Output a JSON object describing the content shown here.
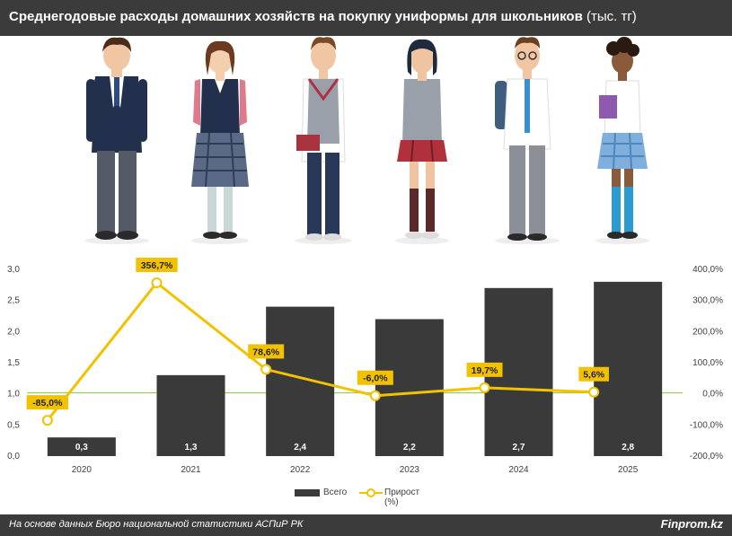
{
  "header": {
    "title": "Среднегодовые расходы домашних хозяйств на покупку униформы для школьников",
    "unit": "(тыс. тг)"
  },
  "footer": {
    "source": "На основе данных Бюро национальной статистики АСПиР РК",
    "brand": "Finprom.kz"
  },
  "colors": {
    "header_bg": "#3b3b3b",
    "bar": "#3a3a3a",
    "line": "#f2c200",
    "label_bg": "#f2c200",
    "baseline": "#8cc63f"
  },
  "chart_data": {
    "type": "bar",
    "categories": [
      "2020",
      "2021",
      "2022",
      "2023",
      "2024",
      "2025"
    ],
    "series": [
      {
        "name": "Всего",
        "type": "bar",
        "axis": "left",
        "values": [
          0.3,
          1.3,
          2.4,
          2.2,
          2.7,
          2.8
        ],
        "labels": [
          "0,3",
          "1,3",
          "2,4",
          "2,2",
          "2,7",
          "2,8"
        ]
      },
      {
        "name": "Прирост (%)",
        "type": "line",
        "axis": "right",
        "values": [
          -85.0,
          356.7,
          78.6,
          -6.0,
          19.7,
          5.6
        ],
        "labels": [
          "-85,0%",
          "356,7%",
          "78,6%",
          "-6,0%",
          "19,7%",
          "5,6%"
        ]
      }
    ],
    "y_left": {
      "min": 0,
      "max": 3,
      "ticks": [
        "0,0",
        "0,5",
        "1,0",
        "1,5",
        "2,0",
        "2,5",
        "3,0"
      ]
    },
    "y_right": {
      "min": -200,
      "max": 400,
      "ticks": [
        "-200,0%",
        "-100,0%",
        "0,0%",
        "100,0%",
        "200,0%",
        "300,0%",
        "400,0%"
      ]
    },
    "legend": [
      "Всего",
      "Прирост (%)"
    ],
    "legend_position": "bottom",
    "grid": false
  }
}
